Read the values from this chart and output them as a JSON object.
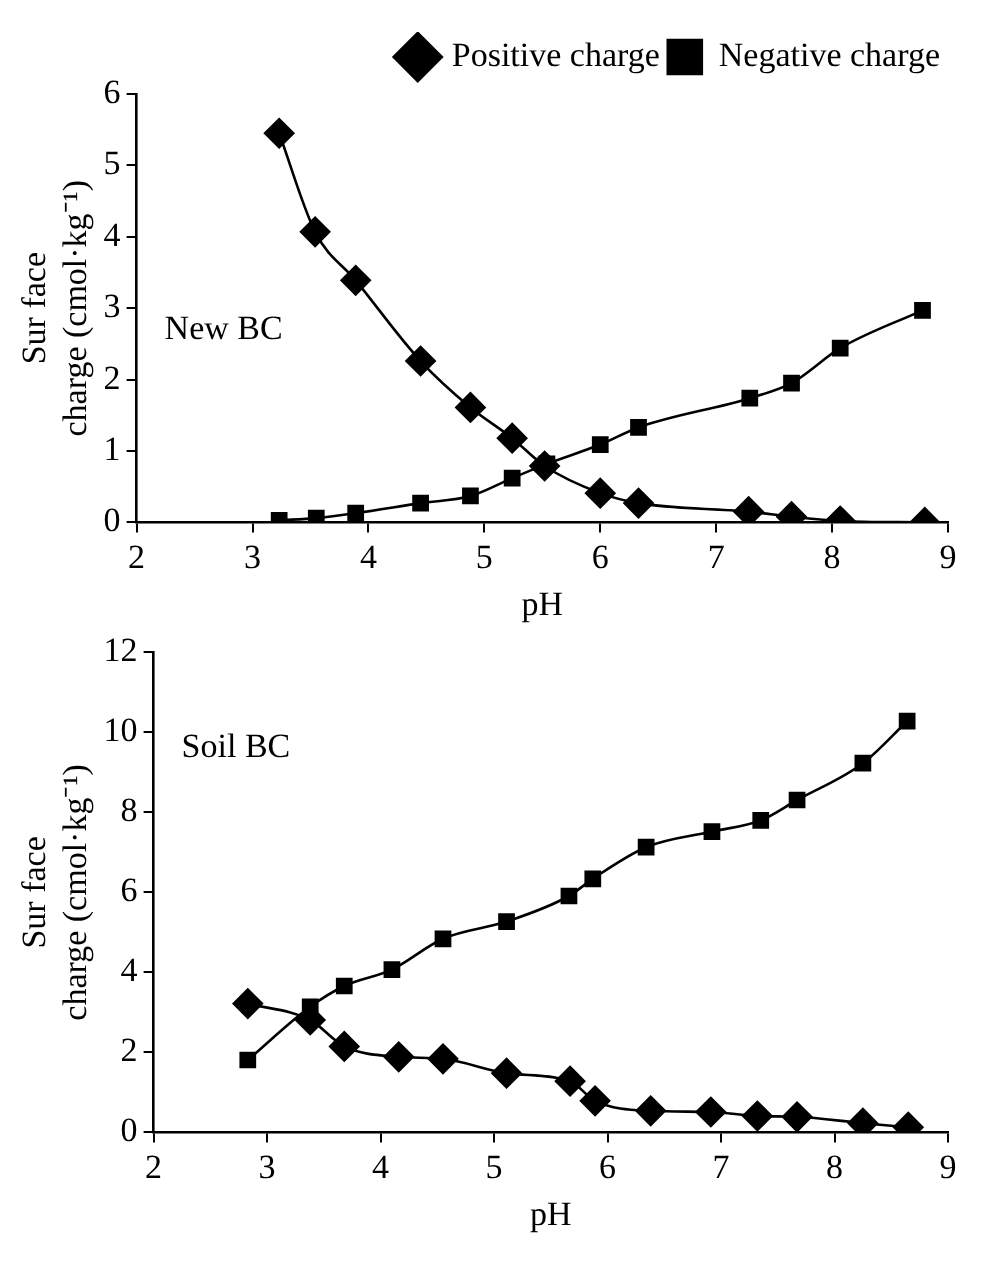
{
  "chart_data": [
    {
      "type": "line",
      "xlabel": "pH",
      "ylabel": "Sur face\ncharge (cmol·kg⁻¹)",
      "annotations": [
        "New BC"
      ],
      "xlim": [
        2,
        9
      ],
      "xticks": [
        2,
        3,
        4,
        5,
        6,
        7,
        8,
        9
      ],
      "ylim": [
        0,
        6
      ],
      "yticks": [
        0,
        1,
        2,
        3,
        4,
        5,
        6
      ],
      "grid": false,
      "legend": "top right",
      "series": [
        {
          "name": "Positive charge",
          "color": "#000000",
          "marker": "diamond",
          "x": [
            3.23,
            3.54,
            3.89,
            4.45,
            4.88,
            5.24,
            5.52,
            6.0,
            6.33,
            7.28,
            7.65,
            8.07,
            8.8
          ],
          "values": [
            5.45,
            4.07,
            3.39,
            2.26,
            1.61,
            1.18,
            0.79,
            0.41,
            0.27,
            0.15,
            0.08,
            0.02,
            0.0
          ]
        },
        {
          "name": "Negative charge",
          "color": "#000000",
          "marker": "square",
          "x": [
            3.23,
            3.55,
            3.89,
            4.45,
            4.88,
            5.24,
            5.54,
            6.0,
            6.33,
            7.29,
            7.65,
            8.07,
            8.78
          ],
          "values": [
            0.03,
            0.06,
            0.13,
            0.27,
            0.37,
            0.62,
            0.82,
            1.09,
            1.33,
            1.74,
            1.95,
            2.44,
            2.97
          ]
        }
      ]
    },
    {
      "type": "line",
      "xlabel": "pH",
      "ylabel": "Sur face\ncharge (cmol·kg⁻¹)",
      "annotations": [
        "Soil BC"
      ],
      "xlim": [
        2,
        9
      ],
      "xticks": [
        2,
        3,
        4,
        5,
        6,
        7,
        8,
        9
      ],
      "ylim": [
        0,
        12
      ],
      "yticks": [
        0,
        2,
        4,
        6,
        8,
        10,
        12
      ],
      "grid": false,
      "legend": false,
      "series": [
        {
          "color": "#000000",
          "marker": "diamond",
          "x": [
            2.83,
            3.38,
            3.68,
            4.16,
            4.55,
            5.11,
            5.67,
            5.89,
            6.38,
            6.91,
            7.32,
            7.67,
            8.25,
            8.65
          ],
          "values": [
            3.22,
            2.81,
            2.15,
            1.89,
            1.84,
            1.48,
            1.28,
            0.79,
            0.54,
            0.51,
            0.41,
            0.39,
            0.23,
            0.13
          ]
        },
        {
          "color": "#000000",
          "marker": "square",
          "x": [
            2.83,
            3.38,
            3.68,
            4.1,
            4.55,
            5.11,
            5.66,
            5.87,
            6.34,
            6.92,
            7.35,
            7.67,
            8.25,
            8.64
          ],
          "values": [
            1.81,
            3.14,
            3.66,
            4.07,
            4.84,
            5.27,
            5.91,
            6.34,
            7.13,
            7.52,
            7.8,
            8.31,
            9.23,
            10.28
          ]
        }
      ]
    }
  ]
}
